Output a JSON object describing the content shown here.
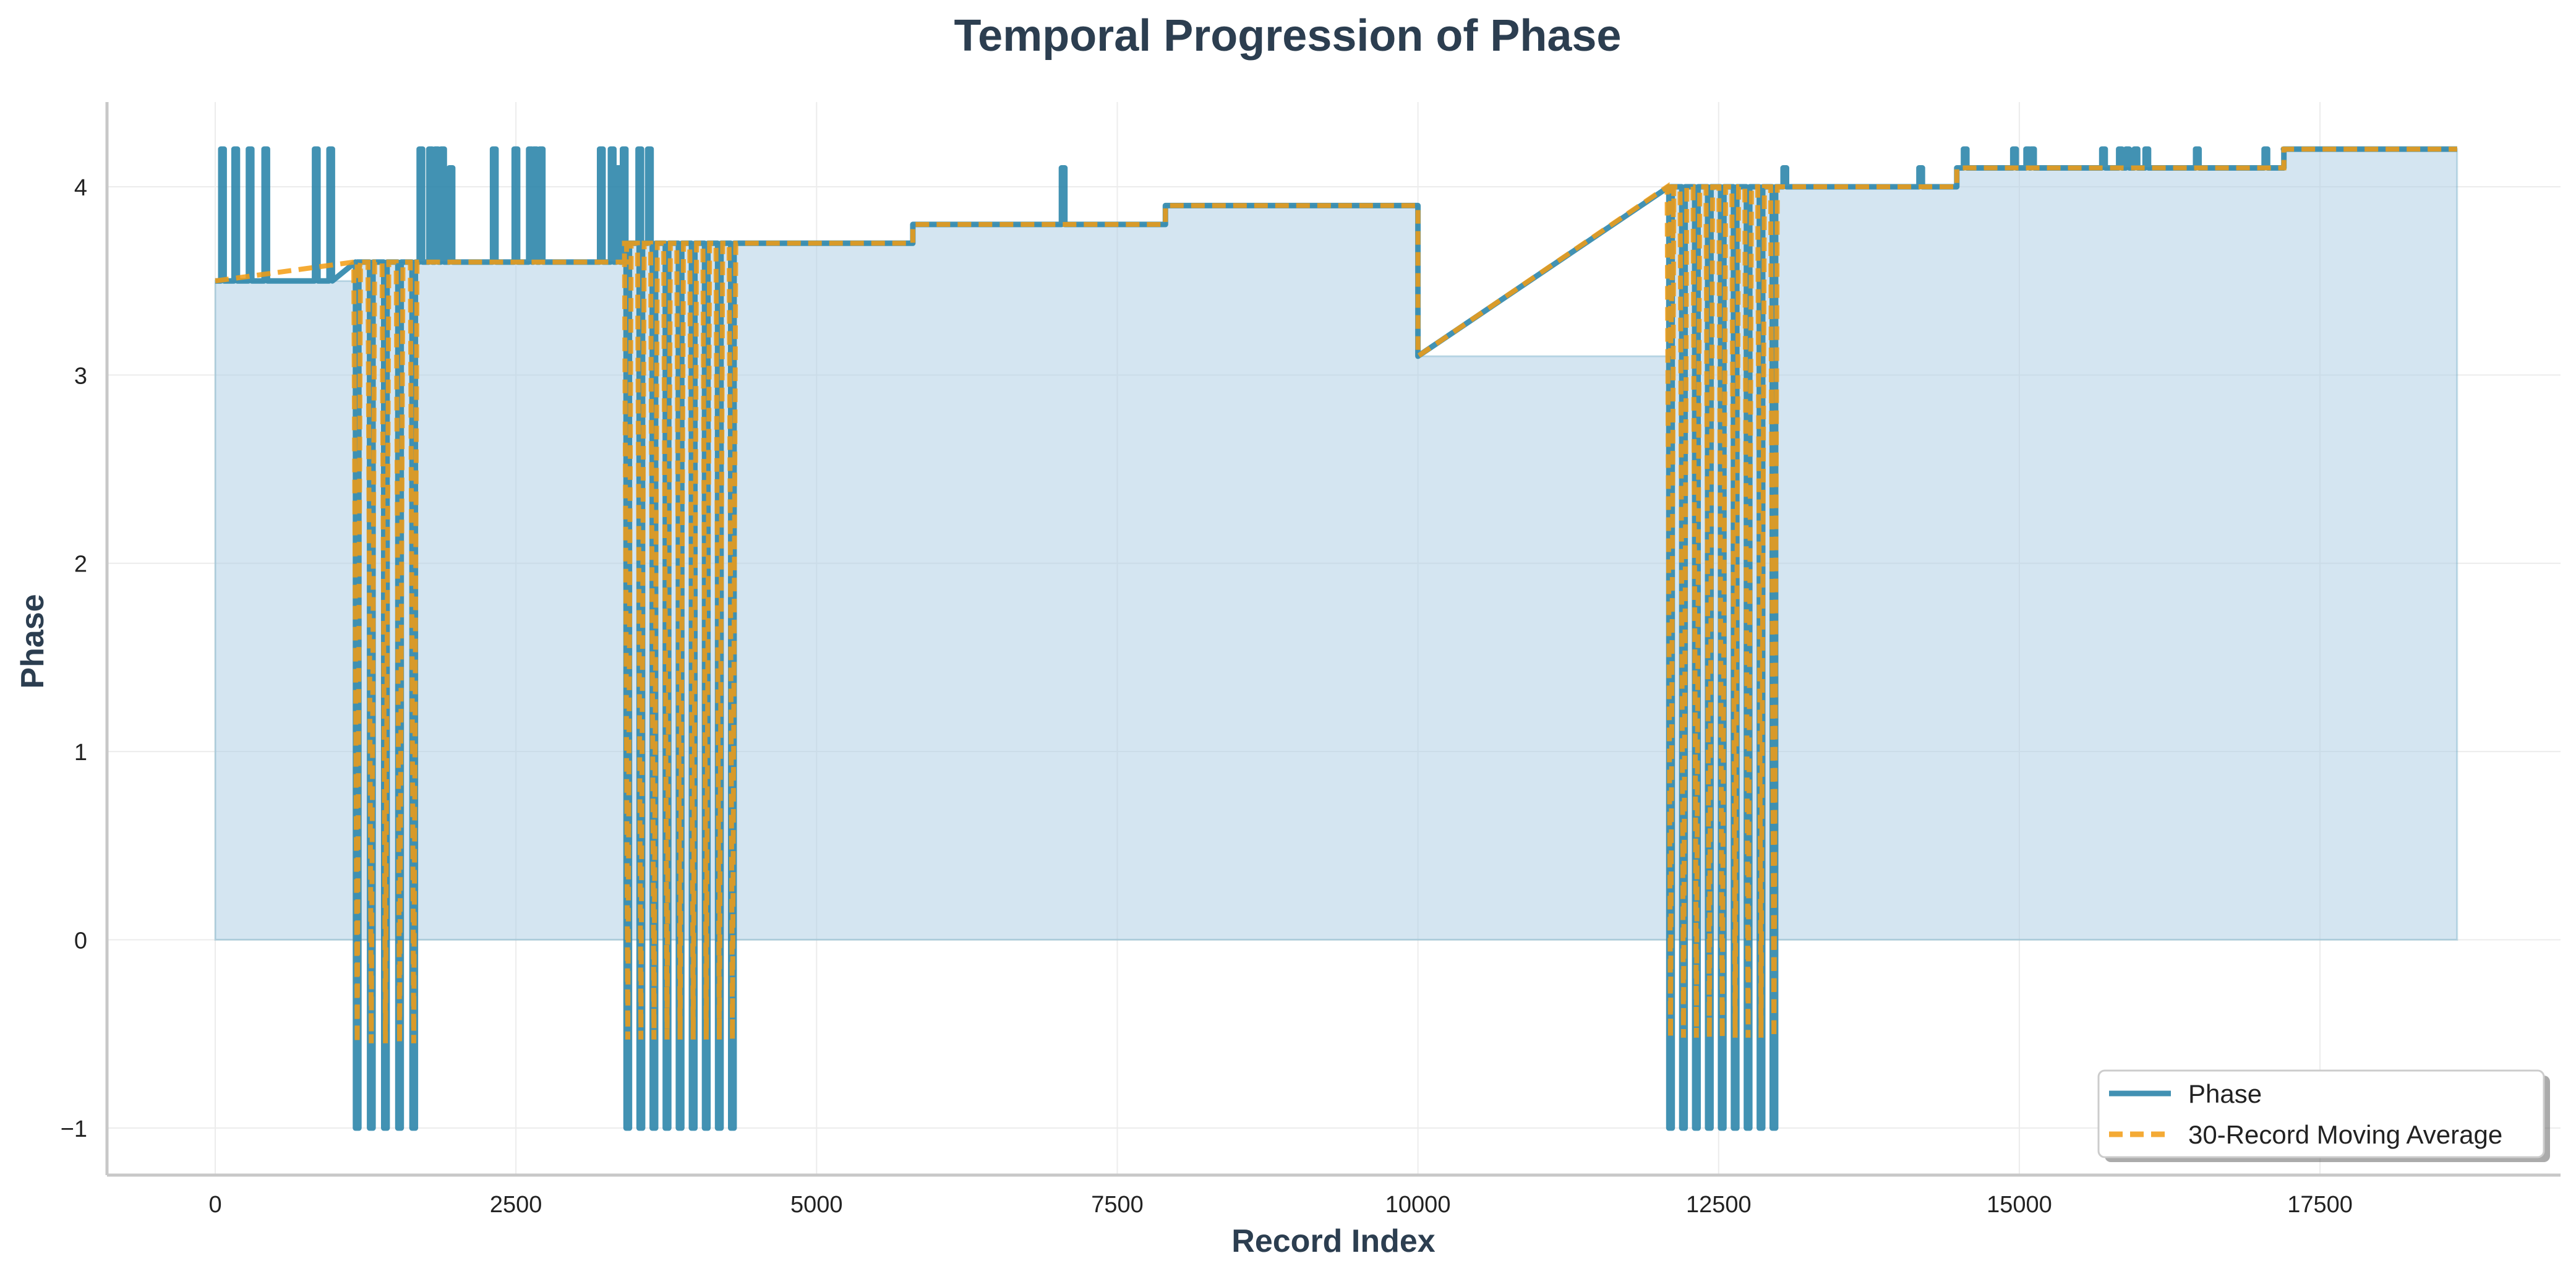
{
  "chart_data": {
    "type": "line",
    "title": "Temporal Progression of Phase",
    "xlabel": "Record Index",
    "ylabel": "Phase",
    "xlim": [
      -900,
      19500
    ],
    "ylim": [
      -1.25,
      4.45
    ],
    "x_ticks": [
      0,
      2500,
      5000,
      7500,
      10000,
      12500,
      15000,
      17500
    ],
    "y_ticks": [
      -1,
      0,
      1,
      2,
      3,
      4
    ],
    "x_tick_labels": [
      "0",
      "2500",
      "5000",
      "7500",
      "10000",
      "12500",
      "15000",
      "17500"
    ],
    "y_tick_labels": [
      "−1",
      "0",
      "1",
      "2",
      "3",
      "4"
    ],
    "grid": true,
    "legend_position": "lower-right",
    "colors": {
      "phase": "#2e86ab",
      "moving_average": "#f39c12",
      "fill": "#a9cce3",
      "axis": "#c8c8c8",
      "text": "#2c3e50"
    },
    "series": [
      {
        "name": "Phase",
        "style": "solid"
      },
      {
        "name": "30-Record Moving Average",
        "style": "dashed"
      }
    ],
    "baseline_steps": [
      {
        "x_start": 0,
        "x_end": 1180,
        "value": 3.5
      },
      {
        "x_start": 1180,
        "x_end": 3420,
        "value": 3.6
      },
      {
        "x_start": 3420,
        "x_end": 5800,
        "value": 3.7
      },
      {
        "x_start": 5800,
        "x_end": 7900,
        "value": 3.8
      },
      {
        "x_start": 7900,
        "x_end": 10000,
        "value": 3.9
      },
      {
        "x_start": 10000,
        "x_end": 12100,
        "value": 3.1
      },
      {
        "x_start": 12100,
        "x_end": 14480,
        "value": 4.0
      },
      {
        "x_start": 14480,
        "x_end": 17200,
        "value": 4.1
      },
      {
        "x_start": 17200,
        "x_end": 18640,
        "value": 4.2
      }
    ],
    "spikes": [
      {
        "x": 60,
        "y": 4.2
      },
      {
        "x": 170,
        "y": 4.2
      },
      {
        "x": 290,
        "y": 4.2
      },
      {
        "x": 420,
        "y": 4.2
      },
      {
        "x": 840,
        "y": 4.2
      },
      {
        "x": 960,
        "y": 4.2
      },
      {
        "x": 1710,
        "y": 4.2
      },
      {
        "x": 1790,
        "y": 4.2
      },
      {
        "x": 1840,
        "y": 4.2
      },
      {
        "x": 1890,
        "y": 4.2
      },
      {
        "x": 1960,
        "y": 4.1
      },
      {
        "x": 2320,
        "y": 4.2
      },
      {
        "x": 2500,
        "y": 4.2
      },
      {
        "x": 2620,
        "y": 4.2
      },
      {
        "x": 2660,
        "y": 4.2
      },
      {
        "x": 2710,
        "y": 4.2
      },
      {
        "x": 3210,
        "y": 4.2
      },
      {
        "x": 3300,
        "y": 4.2
      },
      {
        "x": 3350,
        "y": 4.1
      },
      {
        "x": 3400,
        "y": 4.2
      },
      {
        "x": 3530,
        "y": 4.2
      },
      {
        "x": 3610,
        "y": 4.2
      },
      {
        "x": 7050,
        "y": 4.1
      },
      {
        "x": 13050,
        "y": 4.1
      },
      {
        "x": 14180,
        "y": 4.1
      },
      {
        "x": 14550,
        "y": 4.2
      },
      {
        "x": 14960,
        "y": 4.2
      },
      {
        "x": 15070,
        "y": 4.2
      },
      {
        "x": 15110,
        "y": 4.2
      },
      {
        "x": 15700,
        "y": 4.2
      },
      {
        "x": 15840,
        "y": 4.2
      },
      {
        "x": 15900,
        "y": 4.2
      },
      {
        "x": 15970,
        "y": 4.2
      },
      {
        "x": 16060,
        "y": 4.2
      },
      {
        "x": 16480,
        "y": 4.2
      },
      {
        "x": 17050,
        "y": 4.2
      },
      {
        "x": 17210,
        "y": 4.2
      }
    ],
    "dips": [
      {
        "x_start": 1180,
        "x_end": 1650,
        "count": 5,
        "low": -1.0,
        "high": 3.6,
        "ma_low": -0.55
      },
      {
        "x_start": 3430,
        "x_end": 4300,
        "count": 9,
        "low": -1.0,
        "high": 3.7,
        "ma_low": -0.53
      },
      {
        "x_start": 12100,
        "x_end": 12960,
        "count": 9,
        "low": -1.0,
        "high": 4.0,
        "ma_low": -0.52
      }
    ]
  },
  "legend": {
    "phase_label": "Phase",
    "ma_label": "30-Record Moving Average"
  }
}
